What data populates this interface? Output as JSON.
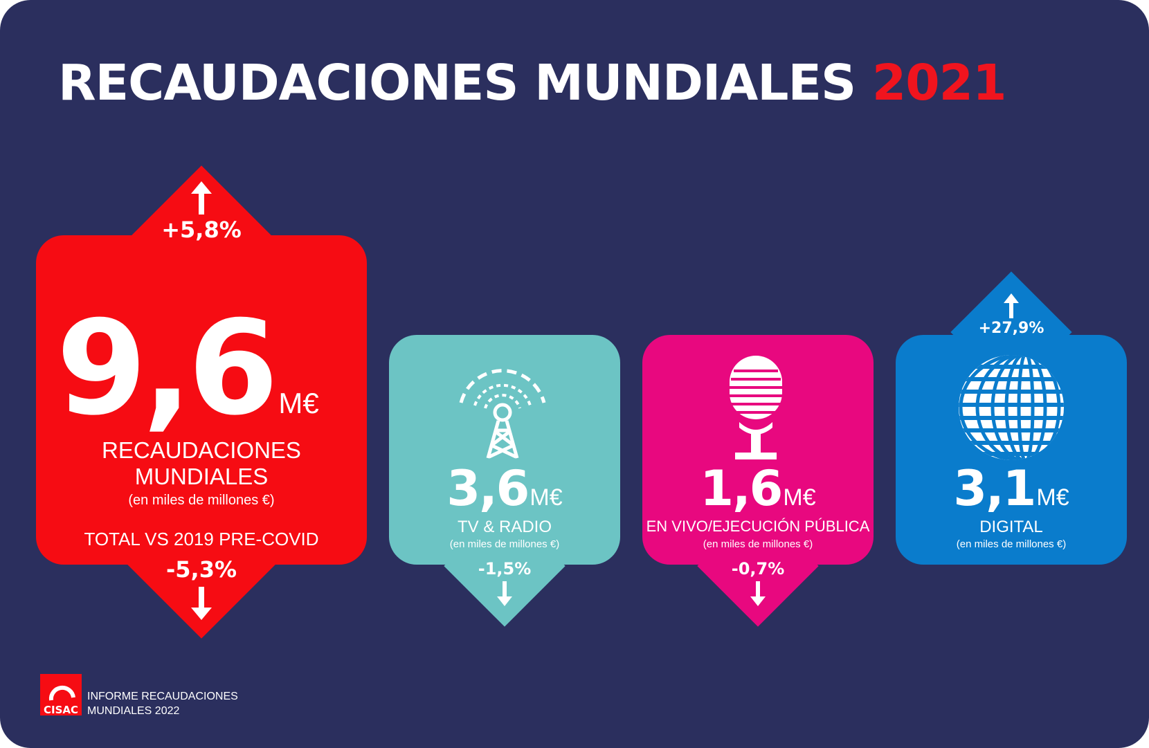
{
  "title": {
    "main": "RECAUDACIONES MUNDIALES",
    "year": "2021"
  },
  "colors": {
    "background": "#2b2f5e",
    "red": "#f60c13",
    "teal": "#6cc4c4",
    "magenta": "#e8087f",
    "blue": "#0a7ccc"
  },
  "total": {
    "value": "9,6",
    "unit": "M€",
    "label_line1": "RECAUDACIONES",
    "label_line2": "MUNDIALES",
    "sublabel": "(en miles de millones €)",
    "change_yoy": "+5,8%",
    "comparison_label": "TOTAL VS 2019 PRE-COVID",
    "change_vs_2019": "-5,3%"
  },
  "categories": [
    {
      "value": "3,6",
      "unit": "M€",
      "label": "TV & RADIO",
      "sublabel": "(en miles de millones €)",
      "change": "-1,5%",
      "direction": "down",
      "icon": "radio-tower-icon"
    },
    {
      "value": "1,6",
      "unit": "M€",
      "label": "EN VIVO/EJECUCIÓN PÚBLICA",
      "sublabel": "(en miles de millones €)",
      "change": "-0,7%",
      "direction": "down",
      "icon": "microphone-icon"
    },
    {
      "value": "3,1",
      "unit": "M€",
      "label": "DIGITAL",
      "sublabel": "(en miles de millones €)",
      "change": "+27,9%",
      "direction": "up",
      "icon": "globe-icon"
    }
  ],
  "footer": {
    "logo_text": "CISAC",
    "line1": "INFORME RECAUDACIONES",
    "line2": "MUNDIALES 2022"
  }
}
